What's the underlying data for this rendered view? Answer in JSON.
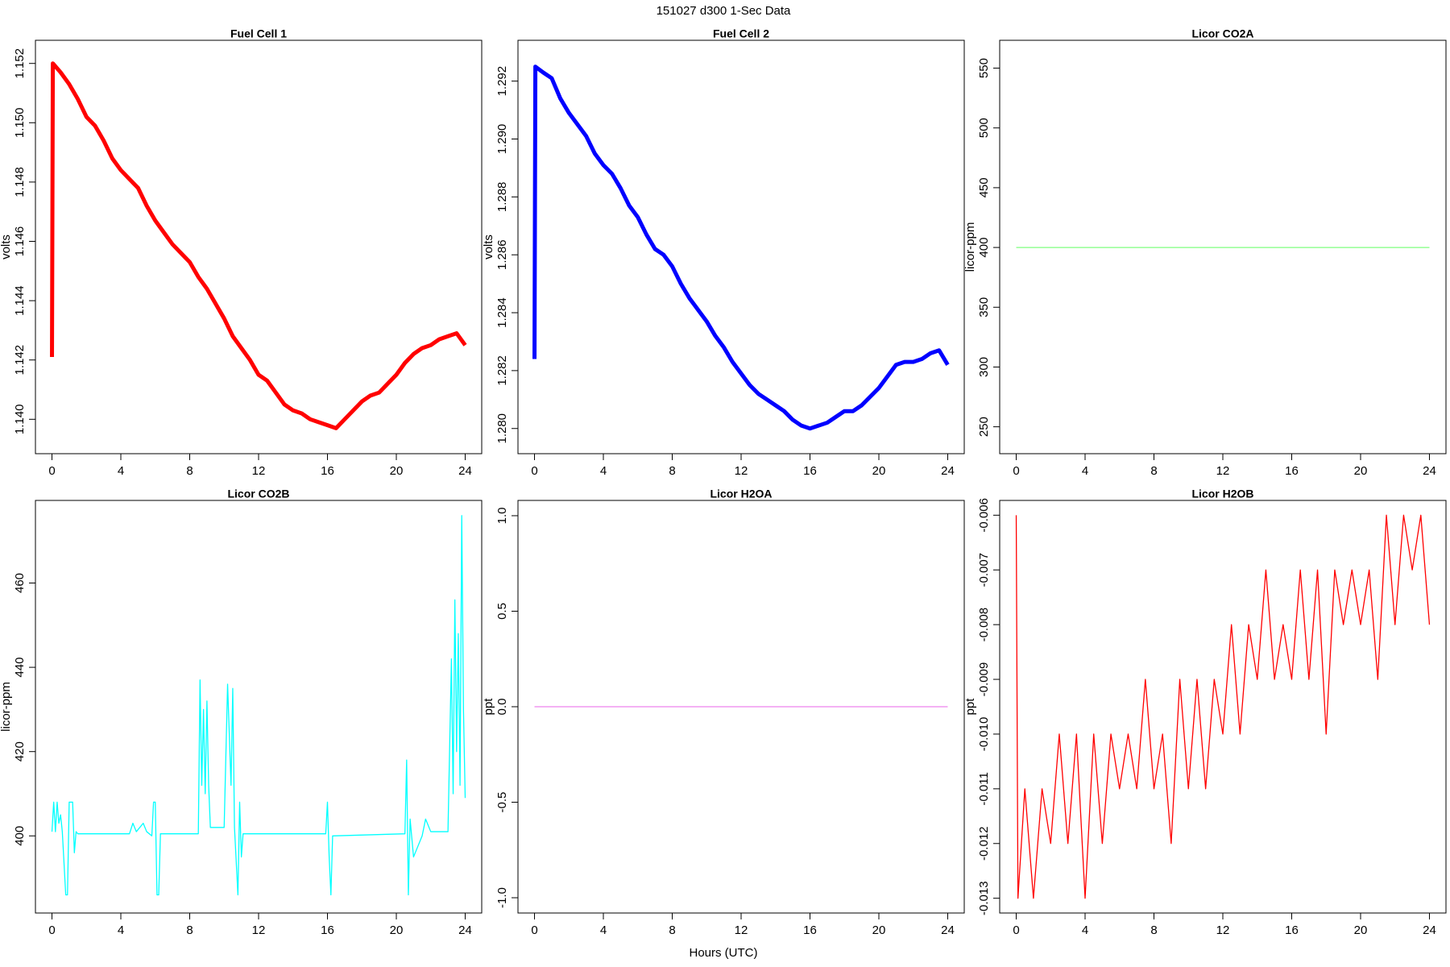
{
  "title": "151027   d300   1-Sec Data",
  "xlabel": "Hours (UTC)",
  "chart_data": [
    {
      "type": "line",
      "title": "Fuel Cell 1",
      "ylabel": "volts",
      "color": "#ff0000",
      "x": [
        0,
        0.05,
        0.5,
        1,
        1.5,
        2,
        2.5,
        3,
        3.5,
        4,
        4.5,
        5,
        5.5,
        6,
        6.5,
        7,
        7.5,
        8,
        8.5,
        9,
        9.5,
        10,
        10.5,
        11,
        11.5,
        12,
        12.5,
        13,
        13.5,
        14,
        14.5,
        15,
        15.5,
        16,
        16.5,
        17,
        17.5,
        18,
        18.5,
        19,
        19.5,
        20,
        20.5,
        21,
        21.5,
        22,
        22.5,
        23,
        23.5,
        24
      ],
      "values": [
        1.1421,
        1.152,
        1.1517,
        1.1513,
        1.1508,
        1.1502,
        1.1499,
        1.1494,
        1.1488,
        1.1484,
        1.1481,
        1.1478,
        1.1472,
        1.1467,
        1.1463,
        1.1459,
        1.1456,
        1.1453,
        1.1448,
        1.1444,
        1.1439,
        1.1434,
        1.1428,
        1.1424,
        1.142,
        1.1415,
        1.1413,
        1.1409,
        1.1405,
        1.1403,
        1.1402,
        1.14,
        1.1399,
        1.1398,
        1.1397,
        1.14,
        1.1403,
        1.1406,
        1.1408,
        1.1409,
        1.1412,
        1.1415,
        1.1419,
        1.1422,
        1.1424,
        1.1425,
        1.1427,
        1.1428,
        1.1429,
        1.1425
      ],
      "xlim": [
        -0.96,
        24.96
      ],
      "xticks": [
        0,
        4,
        8,
        12,
        16,
        20,
        24
      ],
      "ylim": [
        1.13884,
        1.15278
      ],
      "yticks": [
        {
          "value": 1.14,
          "label": "1.140"
        },
        1.142,
        1.144,
        1.146,
        1.148,
        {
          "value": 1.15,
          "label": "1.150"
        },
        1.152
      ]
    },
    {
      "type": "line",
      "title": "Fuel Cell 2",
      "ylabel": "volts",
      "color": "#0000ff",
      "x": [
        0,
        0.05,
        0.5,
        1,
        1.5,
        2,
        2.5,
        3,
        3.5,
        4,
        4.5,
        5,
        5.5,
        6,
        6.5,
        7,
        7.5,
        8,
        8.5,
        9,
        9.5,
        10,
        10.5,
        11,
        11.5,
        12,
        12.5,
        13,
        13.5,
        14,
        14.5,
        15,
        15.5,
        16,
        16.5,
        17,
        17.5,
        18,
        18.5,
        19,
        19.5,
        20,
        20.5,
        21,
        21.5,
        22,
        22.5,
        23,
        23.5,
        24
      ],
      "values": [
        1.2824,
        1.2925,
        1.2923,
        1.2921,
        1.2914,
        1.2909,
        1.2905,
        1.2901,
        1.2895,
        1.2891,
        1.2888,
        1.2883,
        1.2877,
        1.2873,
        1.2867,
        1.2862,
        1.286,
        1.2856,
        1.285,
        1.2845,
        1.2841,
        1.2837,
        1.2832,
        1.2828,
        1.2823,
        1.2819,
        1.2815,
        1.2812,
        1.281,
        1.2808,
        1.2806,
        1.2803,
        1.2801,
        1.28,
        1.2801,
        1.2802,
        1.2804,
        1.2806,
        1.2806,
        1.2808,
        1.2811,
        1.2814,
        1.2818,
        1.2822,
        1.2823,
        1.2823,
        1.2824,
        1.2826,
        1.2827,
        1.2822
      ],
      "xlim": [
        -0.96,
        24.96
      ],
      "xticks": [
        0,
        4,
        8,
        12,
        16,
        20,
        24
      ],
      "ylim": [
        1.27913,
        1.29341
      ],
      "yticks": [
        {
          "value": 1.28,
          "label": "1.280"
        },
        1.282,
        1.284,
        1.286,
        1.288,
        {
          "value": 1.29,
          "label": "1.290"
        },
        1.292
      ]
    },
    {
      "type": "line",
      "title": "Licor CO2A",
      "ylabel": "licor-ppm",
      "color": "#7fff7f",
      "x": [
        0,
        24
      ],
      "values": [
        400,
        400
      ],
      "xlim": [
        -0.96,
        24.96
      ],
      "xticks": [
        0,
        4,
        8,
        12,
        16,
        20,
        24
      ],
      "ylim": [
        227.5,
        573.3
      ],
      "yticks": [
        250,
        300,
        350,
        400,
        450,
        500,
        550
      ]
    },
    {
      "type": "line",
      "title": "Licor CO2B",
      "ylabel": "licor-ppm",
      "color": "#00ffff",
      "x": [
        0,
        0.1,
        0.2,
        0.3,
        0.4,
        0.5,
        0.6,
        0.8,
        0.9,
        1.0,
        1.2,
        1.3,
        1.4,
        1.5,
        3,
        4.5,
        4.7,
        4.9,
        5.3,
        5.5,
        5.8,
        5.9,
        6.0,
        6.1,
        6.2,
        6.3,
        8.5,
        8.6,
        8.7,
        8.8,
        8.9,
        9.0,
        9.1,
        9.2,
        10,
        10.2,
        10.4,
        10.5,
        10.6,
        10.8,
        10.9,
        11.0,
        11.1,
        15.9,
        16.0,
        16.1,
        16.2,
        16.3,
        20.5,
        20.6,
        20.7,
        20.8,
        21,
        21.5,
        21.7,
        22,
        23,
        23.2,
        23.3,
        23.4,
        23.5,
        23.6,
        23.7,
        23.8,
        23.9,
        24
      ],
      "values": [
        401,
        408,
        401,
        408,
        403,
        405,
        401,
        386,
        386,
        408,
        408,
        396,
        401,
        400.5,
        400.5,
        400.5,
        403,
        401,
        403,
        401,
        400,
        408,
        408,
        386,
        386,
        400.5,
        400.5,
        437,
        412,
        430,
        410,
        432,
        412,
        402,
        402,
        436,
        412,
        435,
        402,
        386,
        408,
        395,
        400.5,
        400.5,
        408,
        395,
        386,
        400,
        400.5,
        418,
        386,
        404,
        395,
        400,
        404,
        401,
        401,
        442,
        410,
        456,
        420,
        448,
        412,
        476,
        430,
        409
      ],
      "xlim": [
        -0.96,
        24.96
      ],
      "xticks": [
        0,
        4,
        8,
        12,
        16,
        20,
        24
      ],
      "ylim": [
        381.7,
        479.6
      ],
      "yticks": [
        400,
        420,
        440,
        460
      ]
    },
    {
      "type": "line",
      "title": "Licor H2OA",
      "ylabel": "ppt",
      "color": "#ee82ee",
      "x": [
        0,
        24
      ],
      "values": [
        0,
        0
      ],
      "xlim": [
        -0.96,
        24.96
      ],
      "xticks": [
        0,
        4,
        8,
        12,
        16,
        20,
        24
      ],
      "ylim": [
        -1.08,
        1.08
      ],
      "yticks": [
        {
          "value": -1,
          "label": "-1.0"
        },
        -0.5,
        {
          "value": 0,
          "label": "0.0"
        },
        0.5,
        {
          "value": 1,
          "label": "1.0"
        }
      ]
    },
    {
      "type": "line",
      "title": "Licor H2OB",
      "ylabel": "ppt",
      "color": "#ff0000",
      "x": [
        0,
        0.1,
        0.5,
        1,
        1.5,
        2,
        2.5,
        3,
        3.5,
        4,
        4.5,
        5,
        5.5,
        6,
        6.5,
        7,
        7.5,
        8,
        8.5,
        9,
        9.5,
        10,
        10.5,
        11,
        11.5,
        12,
        12.5,
        13,
        13.5,
        14,
        14.5,
        15,
        15.5,
        16,
        16.5,
        17,
        17.5,
        18,
        18.5,
        19,
        19.5,
        20,
        20.5,
        21,
        21.5,
        22,
        22.5,
        23,
        23.5,
        24
      ],
      "values": [
        -0.006,
        -0.013,
        -0.011,
        -0.013,
        -0.011,
        -0.012,
        -0.01,
        -0.012,
        -0.01,
        -0.013,
        -0.01,
        -0.012,
        -0.01,
        -0.011,
        -0.01,
        -0.011,
        -0.009,
        -0.011,
        -0.01,
        -0.012,
        -0.009,
        -0.011,
        -0.009,
        -0.011,
        -0.009,
        -0.01,
        -0.008,
        -0.01,
        -0.008,
        -0.009,
        -0.007,
        -0.009,
        -0.008,
        -0.009,
        -0.007,
        -0.009,
        -0.007,
        -0.01,
        -0.007,
        -0.008,
        -0.007,
        -0.008,
        -0.007,
        -0.009,
        -0.006,
        -0.008,
        -0.006,
        -0.007,
        -0.006,
        -0.008
      ],
      "xlim": [
        -0.96,
        24.96
      ],
      "xticks": [
        0,
        4,
        8,
        12,
        16,
        20,
        24
      ],
      "ylim": [
        -0.01327,
        -0.00573
      ],
      "yticks": [
        -0.013,
        -0.012,
        -0.011,
        {
          "value": -0.01,
          "label": "-0.010"
        },
        -0.009,
        -0.008,
        -0.007,
        -0.006
      ]
    }
  ]
}
